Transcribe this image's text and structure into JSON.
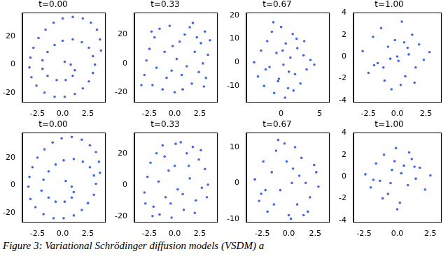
{
  "chart_data": [
    {
      "type": "scatter",
      "title": "t=0.00",
      "color": "#4169e1",
      "marker": "circle",
      "grid": false,
      "xlim": [
        -4,
        4.2
      ],
      "xticks": [
        -2.5,
        {
          "value": 0,
          "label": "0.0"
        },
        2.5
      ],
      "ylim": [
        -27,
        37
      ],
      "yticks": [
        -20,
        0,
        20
      ],
      "x": [
        0.2,
        0.8,
        1.2,
        1.0,
        0.3,
        -0.6,
        -1.5,
        -2.0,
        -2.0,
        -1.5,
        -0.8,
        0.0,
        1.0,
        1.9,
        2.6,
        3.0,
        3.2,
        3.0,
        2.6,
        2.0,
        1.2,
        0.2,
        -0.8,
        -1.8,
        -2.6,
        -3.1,
        -3.3,
        -3.2,
        -2.9,
        -2.4,
        -1.7,
        -0.9,
        0.0,
        1.0,
        2.0,
        2.8,
        3.4,
        3.7,
        3.8
      ],
      "values": [
        2,
        0,
        -4,
        -8,
        -11,
        -11,
        -8,
        -3,
        3,
        9,
        14,
        17,
        18,
        16,
        12,
        6,
        0,
        -6,
        -12,
        -17,
        -21,
        -23,
        -23,
        -20,
        -15,
        -9,
        -2,
        5,
        12,
        19,
        25,
        30,
        33,
        34,
        33,
        30,
        25,
        18,
        10
      ]
    },
    {
      "type": "scatter",
      "title": "t=0.33",
      "color": "#4169e1",
      "marker": "circle",
      "grid": false,
      "xlim": [
        -4,
        4.2
      ],
      "xticks": [
        -2.5,
        {
          "value": 0,
          "label": "0.0"
        },
        2.5
      ],
      "ylim": [
        -27,
        35
      ],
      "yticks": [
        -20,
        0,
        20
      ],
      "x": [
        -3.0,
        -2.8,
        -2.5,
        -2.2,
        -2.0,
        -1.8,
        -1.5,
        -1.2,
        -1.0,
        -0.8,
        -0.5,
        -0.2,
        0.0,
        0.2,
        0.5,
        0.7,
        1.0,
        1.2,
        1.5,
        1.7,
        2.0,
        2.2,
        2.4,
        2.6,
        2.8,
        3.0,
        3.1,
        3.3,
        3.5,
        -3.3,
        -0.3,
        0.8,
        1.8,
        -2.3,
        2.9
      ],
      "values": [
        -8,
        2,
        10,
        -15,
        18,
        -3,
        24,
        -18,
        8,
        -10,
        26,
        12,
        -20,
        3,
        15,
        -8,
        20,
        -2,
        25,
        -14,
        8,
        18,
        -6,
        14,
        0,
        22,
        -10,
        6,
        16,
        -15,
        -5,
        -18,
        28,
        22,
        -16
      ]
    },
    {
      "type": "scatter",
      "title": "t=0.67",
      "color": "#4169e1",
      "marker": "circle",
      "grid": false,
      "xlim": [
        -4.5,
        6.2
      ],
      "xticks": [
        0,
        5
      ],
      "ylim": [
        -17,
        21
      ],
      "yticks": [
        -10,
        0,
        10,
        20
      ],
      "x": [
        -3.5,
        -3.0,
        -2.6,
        -2.2,
        -1.8,
        -1.5,
        -1.2,
        -0.9,
        -0.6,
        -0.3,
        0.0,
        0.3,
        0.6,
        0.9,
        1.2,
        1.5,
        1.8,
        2.1,
        2.5,
        2.9,
        3.3,
        3.8,
        4.3,
        -1.0,
        0.5,
        1.0,
        -2.0,
        2.0,
        0.2,
        -0.4,
        1.6,
        3.0
      ],
      "values": [
        0,
        -6,
        5,
        -10,
        9,
        -2,
        13,
        -13,
        4,
        -7,
        15,
        -1,
        8,
        -11,
        2,
        12,
        -5,
        6,
        -9,
        3,
        -3,
        1,
        -1,
        17,
        -15,
        -4,
        -3,
        10,
        5,
        -8,
        -12,
        9
      ]
    },
    {
      "type": "scatter",
      "title": "t=1.00",
      "color": "#4169e1",
      "marker": "circle",
      "grid": false,
      "xlim": [
        -3.8,
        3.8
      ],
      "xticks": [
        -2.5,
        {
          "value": 0,
          "label": "0.0"
        },
        2.5
      ],
      "ylim": [
        -4.2,
        4.0
      ],
      "yticks": [
        -4,
        -2,
        0,
        2,
        4
      ],
      "x": [
        -3.0,
        -2.5,
        -2.1,
        -1.7,
        -1.4,
        -1.1,
        -0.8,
        -0.5,
        -0.2,
        0.1,
        0.4,
        0.7,
        1.0,
        1.3,
        1.6,
        1.9,
        2.3,
        2.8,
        -0.6,
        0.3,
        0.9,
        -1.2,
        0.0,
        1.5,
        -2.0,
        0.6
      ],
      "values": [
        0.5,
        -1.5,
        1.8,
        -0.6,
        2.6,
        -2.2,
        0.9,
        -3.0,
        1.5,
        -0.4,
        3.2,
        -1.8,
        0.2,
        2.0,
        -1.0,
        1.1,
        -0.3,
        0.4,
        -0.2,
        -2.6,
        0.8,
        -1.0,
        0.0,
        -2.4,
        -0.8,
        1.3
      ]
    },
    {
      "type": "scatter",
      "title": "t=0.00",
      "color": "#4169e1",
      "marker": "circle",
      "grid": false,
      "xlim": [
        -4,
        4.2
      ],
      "xticks": [
        -2.5,
        {
          "value": 0,
          "label": "0.0"
        },
        2.5
      ],
      "ylim": [
        -27,
        38
      ],
      "yticks": [
        -20,
        0,
        20
      ],
      "x": [
        0.3,
        0.9,
        1.1,
        0.9,
        0.2,
        -0.7,
        -1.4,
        -2.1,
        -1.9,
        -1.4,
        -0.7,
        0.1,
        1.1,
        2.0,
        2.7,
        3.1,
        3.3,
        3.1,
        2.5,
        1.9,
        1.1,
        0.1,
        -0.9,
        -1.9,
        -2.7,
        -3.2,
        -3.4,
        -3.3,
        -3.0,
        -2.5,
        -1.8,
        -1.0,
        -0.1,
        0.9,
        1.9,
        2.7,
        3.3,
        3.6,
        3.7
      ],
      "values": [
        3,
        -1,
        -5,
        -9,
        -12,
        -12,
        -9,
        -4,
        4,
        10,
        15,
        18,
        19,
        17,
        13,
        7,
        1,
        -7,
        -13,
        -18,
        -22,
        -24,
        -24,
        -21,
        -16,
        -10,
        -1,
        6,
        13,
        20,
        26,
        31,
        34,
        35,
        33,
        29,
        24,
        17,
        9
      ]
    },
    {
      "type": "scatter",
      "title": "t=0.33",
      "color": "#4169e1",
      "marker": "circle",
      "grid": false,
      "xlim": [
        -4,
        4.2
      ],
      "xticks": [
        -2.5,
        {
          "value": 0,
          "label": "0.0"
        },
        2.5
      ],
      "ylim": [
        -24,
        33
      ],
      "yticks": [
        -20,
        0,
        20
      ],
      "x": [
        -3.0,
        -2.7,
        -2.4,
        -2.1,
        -1.8,
        -1.5,
        -1.2,
        -0.9,
        -0.6,
        -0.3,
        0.0,
        0.3,
        0.6,
        0.9,
        1.2,
        1.5,
        1.8,
        2.1,
        2.4,
        2.7,
        3.0,
        3.3,
        -2.9,
        -1.6,
        -0.4,
        0.8,
        2.0,
        3.2,
        -2.2,
        1.4,
        0.1,
        2.6,
        -1.0
      ],
      "values": [
        -5,
        5,
        14,
        -14,
        20,
        -19,
        25,
        -8,
        9,
        -21,
        12,
        -3,
        27,
        -16,
        20,
        4,
        24,
        -10,
        16,
        -2,
        10,
        0,
        -12,
        2,
        -12,
        -6,
        -18,
        -8,
        -20,
        12,
        26,
        22,
        18
      ]
    },
    {
      "type": "scatter",
      "title": "t=0.67",
      "color": "#4169e1",
      "marker": "circle",
      "grid": false,
      "xlim": [
        -4,
        3.8
      ],
      "xticks": [
        -2.5,
        {
          "value": 0,
          "label": "0.0"
        },
        2.5
      ],
      "ylim": [
        -11,
        14
      ],
      "yticks": [
        -10,
        0,
        10
      ],
      "x": [
        -3.2,
        -2.8,
        -2.4,
        -2.0,
        -1.6,
        -1.2,
        -0.8,
        -0.4,
        0.0,
        0.4,
        0.8,
        1.2,
        1.6,
        2.0,
        2.4,
        2.8,
        -1.0,
        0.2,
        1.0,
        -2.2,
        0.6,
        -0.2,
        1.8,
        -1.4,
        0.3,
        2.6,
        -2.6,
        1.4
      ],
      "values": [
        1,
        -5,
        6,
        -8,
        3,
        9,
        -2,
        11,
        -9,
        4,
        -6,
        7,
        0,
        -4,
        5,
        -1,
        12,
        -10,
        2,
        -2,
        10,
        6,
        -8,
        -6,
        0,
        3,
        -3,
        -9
      ]
    },
    {
      "type": "scatter",
      "title": "t=1.00",
      "color": "#4169e1",
      "marker": "circle",
      "grid": false,
      "xlim": [
        -3.3,
        3.3
      ],
      "xticks": [
        -2.5,
        {
          "value": 0,
          "label": "0.0"
        },
        2.5
      ],
      "ylim": [
        -4.2,
        4.0
      ],
      "yticks": [
        -4,
        -2,
        0,
        2,
        4
      ],
      "x": [
        -2.4,
        -2.0,
        -1.6,
        -1.3,
        -1.0,
        -0.7,
        -0.4,
        -0.1,
        0.2,
        0.5,
        0.8,
        1.1,
        1.4,
        1.7,
        2.1,
        2.5,
        -0.5,
        0.3,
        -1.1,
        0.9,
        0.0,
        -0.2,
        1.3,
        -1.8
      ],
      "values": [
        0.2,
        -1.0,
        1.2,
        -0.4,
        2.0,
        -1.6,
        0.6,
        2.6,
        -2.4,
        1.0,
        -0.8,
        1.6,
        -0.2,
        0.8,
        -1.2,
        0.1,
        -0.6,
        0.3,
        -2.0,
        2.2,
        -3.0,
        1.4,
        0.9,
        -0.3
      ]
    }
  ],
  "caption": "Figure 3: Variational Schrödinger diffusion models (VSDM) a"
}
